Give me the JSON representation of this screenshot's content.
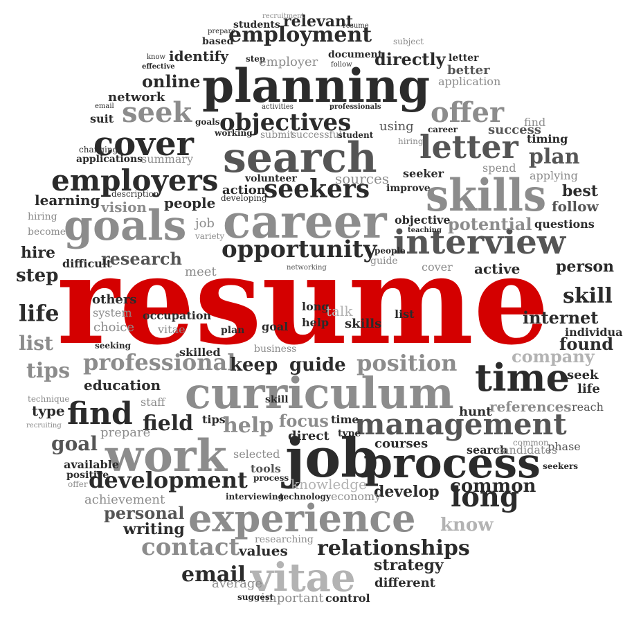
{
  "colors": {
    "background": "#ffffff",
    "highlight": "#d40000",
    "dark": "#2b2b2b",
    "mid": "#555555",
    "light": "#8c8c8c",
    "pale": "#b3b3b3"
  },
  "words": [
    {
      "text": "resume",
      "size": 175,
      "color": "highlight",
      "weight": "bold"
    },
    {
      "text": "planning",
      "size": 66,
      "color": "dark",
      "weight": "bold"
    },
    {
      "text": "search",
      "size": 60,
      "color": "mid",
      "weight": "bold"
    },
    {
      "text": "career",
      "size": 66,
      "color": "light",
      "weight": "bold"
    },
    {
      "text": "skills",
      "size": 64,
      "color": "light",
      "weight": "bold"
    },
    {
      "text": "goals",
      "size": 60,
      "color": "light",
      "weight": "bold"
    },
    {
      "text": "interview",
      "size": 48,
      "color": "mid",
      "weight": "bold"
    },
    {
      "text": "curriculum",
      "size": 62,
      "color": "light",
      "weight": "bold"
    },
    {
      "text": "work",
      "size": 64,
      "color": "light",
      "weight": "bold"
    },
    {
      "text": "job",
      "size": 78,
      "color": "dark",
      "weight": "bold"
    },
    {
      "text": "process",
      "size": 60,
      "color": "dark",
      "weight": "bold"
    },
    {
      "text": "experience",
      "size": 54,
      "color": "light",
      "weight": "bold"
    },
    {
      "text": "vitae",
      "size": 56,
      "color": "pale",
      "weight": "bold"
    },
    {
      "text": "time",
      "size": 54,
      "color": "dark",
      "weight": "bold"
    },
    {
      "text": "management",
      "size": 42,
      "color": "mid",
      "weight": "bold"
    },
    {
      "text": "letter",
      "size": 46,
      "color": "mid",
      "weight": "bold"
    },
    {
      "text": "offer",
      "size": 40,
      "color": "light",
      "weight": "bold"
    },
    {
      "text": "cover",
      "size": 48,
      "color": "dark",
      "weight": "bold"
    },
    {
      "text": "employers",
      "size": 42,
      "color": "dark",
      "weight": "bold"
    },
    {
      "text": "seekers",
      "size": 36,
      "color": "dark",
      "weight": "bold"
    },
    {
      "text": "opportunity",
      "size": 34,
      "color": "dark",
      "weight": "bold"
    },
    {
      "text": "employment",
      "size": 30,
      "color": "dark",
      "weight": "bold"
    },
    {
      "text": "objectives",
      "size": 34,
      "color": "dark",
      "weight": "bold"
    },
    {
      "text": "seek",
      "size": 40,
      "color": "light",
      "weight": "bold"
    },
    {
      "text": "professional",
      "size": 32,
      "color": "light",
      "weight": "bold"
    },
    {
      "text": "find",
      "size": 44,
      "color": "dark",
      "weight": "bold"
    },
    {
      "text": "development",
      "size": 32,
      "color": "dark",
      "weight": "bold"
    },
    {
      "text": "contact",
      "size": 34,
      "color": "light",
      "weight": "bold"
    },
    {
      "text": "email",
      "size": 30,
      "color": "dark",
      "weight": "bold"
    },
    {
      "text": "relationships",
      "size": 30,
      "color": "dark",
      "weight": "bold"
    },
    {
      "text": "position",
      "size": 32,
      "color": "light",
      "weight": "bold"
    },
    {
      "text": "long",
      "size": 40,
      "color": "dark",
      "weight": "bold"
    },
    {
      "text": "common",
      "size": 26,
      "color": "dark",
      "weight": "bold"
    },
    {
      "text": "develop",
      "size": 22,
      "color": "dark",
      "weight": "bold"
    },
    {
      "text": "keep",
      "size": 26,
      "color": "dark",
      "weight": "bold"
    },
    {
      "text": "guide",
      "size": 26,
      "color": "dark",
      "weight": "bold"
    },
    {
      "text": "help",
      "size": 30,
      "color": "light",
      "weight": "bold"
    },
    {
      "text": "focus",
      "size": 24,
      "color": "light",
      "weight": "bold"
    },
    {
      "text": "field",
      "size": 30,
      "color": "dark",
      "weight": "bold"
    },
    {
      "text": "goal",
      "size": 28,
      "color": "mid",
      "weight": "bold"
    },
    {
      "text": "personal",
      "size": 24,
      "color": "mid",
      "weight": "bold"
    },
    {
      "text": "writing",
      "size": 22,
      "color": "dark",
      "weight": "bold"
    },
    {
      "text": "life",
      "size": 32,
      "color": "dark",
      "weight": "bold"
    },
    {
      "text": "list",
      "size": 28,
      "color": "light",
      "weight": "bold"
    },
    {
      "text": "tips",
      "size": 30,
      "color": "light",
      "weight": "bold"
    },
    {
      "text": "step",
      "size": 26,
      "color": "dark",
      "weight": "bold"
    },
    {
      "text": "hire",
      "size": 22,
      "color": "dark",
      "weight": "bold"
    },
    {
      "text": "research",
      "size": 24,
      "color": "mid",
      "weight": "bold"
    },
    {
      "text": "people",
      "size": 20,
      "color": "dark",
      "weight": "bold"
    },
    {
      "text": "vision",
      "size": 20,
      "color": "light",
      "weight": "bold"
    },
    {
      "text": "learning",
      "size": 20,
      "color": "dark",
      "weight": "bold"
    },
    {
      "text": "network",
      "size": 18,
      "color": "dark",
      "weight": "bold"
    },
    {
      "text": "online",
      "size": 24,
      "color": "dark",
      "weight": "bold"
    },
    {
      "text": "identify",
      "size": 20,
      "color": "dark",
      "weight": "bold"
    },
    {
      "text": "relevant",
      "size": 22,
      "color": "dark",
      "weight": "bold"
    },
    {
      "text": "directly",
      "size": 24,
      "color": "dark",
      "weight": "bold"
    },
    {
      "text": "better",
      "size": 18,
      "color": "mid",
      "weight": "bold"
    },
    {
      "text": "application",
      "size": 16,
      "color": "light",
      "weight": "normal"
    },
    {
      "text": "find",
      "size": 16,
      "color": "light",
      "weight": "normal"
    },
    {
      "text": "success",
      "size": 18,
      "color": "mid",
      "weight": "bold"
    },
    {
      "text": "plan",
      "size": 30,
      "color": "mid",
      "weight": "bold"
    },
    {
      "text": "timing",
      "size": 16,
      "color": "dark",
      "weight": "bold"
    },
    {
      "text": "applying",
      "size": 16,
      "color": "light",
      "weight": "normal"
    },
    {
      "text": "best",
      "size": 22,
      "color": "dark",
      "weight": "bold"
    },
    {
      "text": "follow",
      "size": 20,
      "color": "mid",
      "weight": "bold"
    },
    {
      "text": "questions",
      "size": 16,
      "color": "dark",
      "weight": "bold"
    },
    {
      "text": "potential",
      "size": 24,
      "color": "light",
      "weight": "bold"
    },
    {
      "text": "person",
      "size": 22,
      "color": "dark",
      "weight": "bold"
    },
    {
      "text": "active",
      "size": 20,
      "color": "dark",
      "weight": "bold"
    },
    {
      "text": "skill",
      "size": 30,
      "color": "dark",
      "weight": "bold"
    },
    {
      "text": "internet",
      "size": 24,
      "color": "dark",
      "weight": "bold"
    },
    {
      "text": "individual",
      "size": 16,
      "color": "dark",
      "weight": "bold"
    },
    {
      "text": "found",
      "size": 24,
      "color": "dark",
      "weight": "bold"
    },
    {
      "text": "company",
      "size": 24,
      "color": "pale",
      "weight": "bold"
    },
    {
      "text": "seek",
      "size": 18,
      "color": "dark",
      "weight": "bold"
    },
    {
      "text": "life",
      "size": 18,
      "color": "dark",
      "weight": "bold"
    },
    {
      "text": "reach",
      "size": 16,
      "color": "mid",
      "weight": "normal"
    },
    {
      "text": "references",
      "size": 20,
      "color": "light",
      "weight": "bold"
    },
    {
      "text": "hunt",
      "size": 18,
      "color": "dark",
      "weight": "bold"
    },
    {
      "text": "phase",
      "size": 16,
      "color": "mid",
      "weight": "normal"
    },
    {
      "text": "seekers",
      "size": 12,
      "color": "dark",
      "weight": "bold"
    },
    {
      "text": "know",
      "size": 26,
      "color": "pale",
      "weight": "bold"
    },
    {
      "text": "strategy",
      "size": 22,
      "color": "dark",
      "weight": "bold"
    },
    {
      "text": "different",
      "size": 18,
      "color": "dark",
      "weight": "bold"
    },
    {
      "text": "control",
      "size": 16,
      "color": "dark",
      "weight": "bold"
    },
    {
      "text": "important",
      "size": 18,
      "color": "light",
      "weight": "normal"
    },
    {
      "text": "suggest",
      "size": 12,
      "color": "dark",
      "weight": "bold"
    },
    {
      "text": "average",
      "size": 18,
      "color": "light",
      "weight": "normal"
    },
    {
      "text": "values",
      "size": 20,
      "color": "dark",
      "weight": "bold"
    },
    {
      "text": "researching",
      "size": 14,
      "color": "light",
      "weight": "normal"
    },
    {
      "text": "achievement",
      "size": 18,
      "color": "light",
      "weight": "normal"
    },
    {
      "text": "interviewing",
      "size": 12,
      "color": "dark",
      "weight": "bold"
    },
    {
      "text": "technology",
      "size": 12,
      "color": "dark",
      "weight": "bold"
    },
    {
      "text": "economy",
      "size": 16,
      "color": "light",
      "weight": "normal"
    },
    {
      "text": "knowledge",
      "size": 20,
      "color": "pale",
      "weight": "normal"
    },
    {
      "text": "tools",
      "size": 16,
      "color": "mid",
      "weight": "bold"
    },
    {
      "text": "process",
      "size": 12,
      "color": "dark",
      "weight": "bold"
    },
    {
      "text": "selected",
      "size": 16,
      "color": "light",
      "weight": "normal"
    },
    {
      "text": "direct",
      "size": 18,
      "color": "dark",
      "weight": "bold"
    },
    {
      "text": "type",
      "size": 14,
      "color": "dark",
      "weight": "bold"
    },
    {
      "text": "courses",
      "size": 18,
      "color": "dark",
      "weight": "bold"
    },
    {
      "text": "search",
      "size": 16,
      "color": "dark",
      "weight": "bold"
    },
    {
      "text": "candidates",
      "size": 16,
      "color": "light",
      "weight": "normal"
    },
    {
      "text": "common",
      "size": 12,
      "color": "light",
      "weight": "normal"
    },
    {
      "text": "available",
      "size": 16,
      "color": "dark",
      "weight": "bold"
    },
    {
      "text": "positive",
      "size": 14,
      "color": "dark",
      "weight": "bold"
    },
    {
      "text": "offer",
      "size": 12,
      "color": "light",
      "weight": "normal"
    },
    {
      "text": "education",
      "size": 20,
      "color": "dark",
      "weight": "bold"
    },
    {
      "text": "technique",
      "size": 12,
      "color": "light",
      "weight": "normal"
    },
    {
      "text": "type",
      "size": 20,
      "color": "dark",
      "weight": "bold"
    },
    {
      "text": "recruiting",
      "size": 10,
      "color": "light",
      "weight": "normal"
    },
    {
      "text": "staff",
      "size": 16,
      "color": "light",
      "weight": "normal"
    },
    {
      "text": "prepare",
      "size": 18,
      "color": "light",
      "weight": "normal"
    },
    {
      "text": "skill",
      "size": 14,
      "color": "dark",
      "weight": "bold"
    },
    {
      "text": "tips",
      "size": 16,
      "color": "dark",
      "weight": "bold"
    },
    {
      "text": "time",
      "size": 16,
      "color": "dark",
      "weight": "bold"
    },
    {
      "text": "skilled",
      "size": 16,
      "color": "dark",
      "weight": "bold"
    },
    {
      "text": "others",
      "size": 18,
      "color": "dark",
      "weight": "bold"
    },
    {
      "text": "system",
      "size": 16,
      "color": "light",
      "weight": "normal"
    },
    {
      "text": "choice",
      "size": 18,
      "color": "light",
      "weight": "normal"
    },
    {
      "text": "seeking",
      "size": 12,
      "color": "dark",
      "weight": "bold"
    },
    {
      "text": "occupation",
      "size": 16,
      "color": "dark",
      "weight": "bold"
    },
    {
      "text": "vitae",
      "size": 16,
      "color": "light",
      "weight": "normal"
    },
    {
      "text": "plan",
      "size": 14,
      "color": "dark",
      "weight": "bold"
    },
    {
      "text": "long",
      "size": 16,
      "color": "dark",
      "weight": "bold"
    },
    {
      "text": "help",
      "size": 16,
      "color": "dark",
      "weight": "bold"
    },
    {
      "text": "talk",
      "size": 20,
      "color": "pale",
      "weight": "normal"
    },
    {
      "text": "skills",
      "size": 18,
      "color": "dark",
      "weight": "bold"
    },
    {
      "text": "list",
      "size": 16,
      "color": "dark",
      "weight": "bold"
    },
    {
      "text": "goal",
      "size": 16,
      "color": "dark",
      "weight": "bold"
    },
    {
      "text": "business",
      "size": 14,
      "color": "light",
      "weight": "normal"
    },
    {
      "text": "meet",
      "size": 18,
      "color": "light",
      "weight": "normal"
    },
    {
      "text": "difficult",
      "size": 16,
      "color": "dark",
      "weight": "bold"
    },
    {
      "text": "variety",
      "size": 12,
      "color": "light",
      "weight": "normal"
    },
    {
      "text": "job",
      "size": 18,
      "color": "light",
      "weight": "normal"
    },
    {
      "text": "action",
      "size": 18,
      "color": "dark",
      "weight": "bold"
    },
    {
      "text": "volunteer",
      "size": 14,
      "color": "dark",
      "weight": "bold"
    },
    {
      "text": "developing",
      "size": 12,
      "color": "dark",
      "weight": "normal"
    },
    {
      "text": "sources",
      "size": 20,
      "color": "light",
      "weight": "normal"
    },
    {
      "text": "improve",
      "size": 14,
      "color": "dark",
      "weight": "bold"
    },
    {
      "text": "seeker",
      "size": 16,
      "color": "dark",
      "weight": "bold"
    },
    {
      "text": "spend",
      "size": 16,
      "color": "light",
      "weight": "normal"
    },
    {
      "text": "objective",
      "size": 16,
      "color": "dark",
      "weight": "bold"
    },
    {
      "text": "teaching",
      "size": 10,
      "color": "dark",
      "weight": "bold"
    },
    {
      "text": "people",
      "size": 12,
      "color": "dark",
      "weight": "bold"
    },
    {
      "text": "guide",
      "size": 14,
      "color": "light",
      "weight": "normal"
    },
    {
      "text": "networking",
      "size": 10,
      "color": "mid",
      "weight": "normal"
    },
    {
      "text": "cover",
      "size": 16,
      "color": "light",
      "weight": "normal"
    },
    {
      "text": "using",
      "size": 18,
      "color": "mid",
      "weight": "normal"
    },
    {
      "text": "career",
      "size": 12,
      "color": "dark",
      "weight": "bold"
    },
    {
      "text": "hiring",
      "size": 12,
      "color": "light",
      "weight": "normal"
    },
    {
      "text": "submit",
      "size": 14,
      "color": "light",
      "weight": "normal"
    },
    {
      "text": "successful",
      "size": 14,
      "color": "light",
      "weight": "normal"
    },
    {
      "text": "student",
      "size": 12,
      "color": "dark",
      "weight": "bold"
    },
    {
      "text": "working",
      "size": 12,
      "color": "dark",
      "weight": "bold"
    },
    {
      "text": "goals",
      "size": 12,
      "color": "dark",
      "weight": "bold"
    },
    {
      "text": "activities",
      "size": 10,
      "color": "dark",
      "weight": "normal"
    },
    {
      "text": "professionals",
      "size": 10,
      "color": "dark",
      "weight": "bold"
    },
    {
      "text": "summary",
      "size": 16,
      "color": "light",
      "weight": "normal"
    },
    {
      "text": "applications",
      "size": 14,
      "color": "dark",
      "weight": "bold"
    },
    {
      "text": "changing",
      "size": 12,
      "color": "dark",
      "weight": "normal"
    },
    {
      "text": "suit",
      "size": 16,
      "color": "dark",
      "weight": "bold"
    },
    {
      "text": "effective",
      "size": 10,
      "color": "dark",
      "weight": "bold"
    },
    {
      "text": "step",
      "size": 12,
      "color": "dark",
      "weight": "bold"
    },
    {
      "text": "employer",
      "size": 18,
      "color": "light",
      "weight": "normal"
    },
    {
      "text": "follow",
      "size": 10,
      "color": "dark",
      "weight": "normal"
    },
    {
      "text": "document",
      "size": 14,
      "color": "dark",
      "weight": "bold"
    },
    {
      "text": "letter",
      "size": 14,
      "color": "dark",
      "weight": "bold"
    },
    {
      "text": "students",
      "size": 14,
      "color": "dark",
      "weight": "bold"
    },
    {
      "text": "based",
      "size": 14,
      "color": "dark",
      "weight": "bold"
    },
    {
      "text": "prepare",
      "size": 10,
      "color": "dark",
      "weight": "normal"
    },
    {
      "text": "recruitment",
      "size": 10,
      "color": "light",
      "weight": "normal"
    },
    {
      "text": "resume",
      "size": 10,
      "color": "dark",
      "weight": "normal"
    },
    {
      "text": "subject",
      "size": 12,
      "color": "light",
      "weight": "normal"
    },
    {
      "text": "hiring",
      "size": 14,
      "color": "light",
      "weight": "normal"
    },
    {
      "text": "become",
      "size": 14,
      "color": "light",
      "weight": "normal"
    },
    {
      "text": "description",
      "size": 12,
      "color": "dark",
      "weight": "normal"
    },
    {
      "text": "know",
      "size": 10,
      "color": "dark",
      "weight": "normal"
    },
    {
      "text": "email",
      "size": 10,
      "color": "dark",
      "weight": "normal"
    }
  ]
}
